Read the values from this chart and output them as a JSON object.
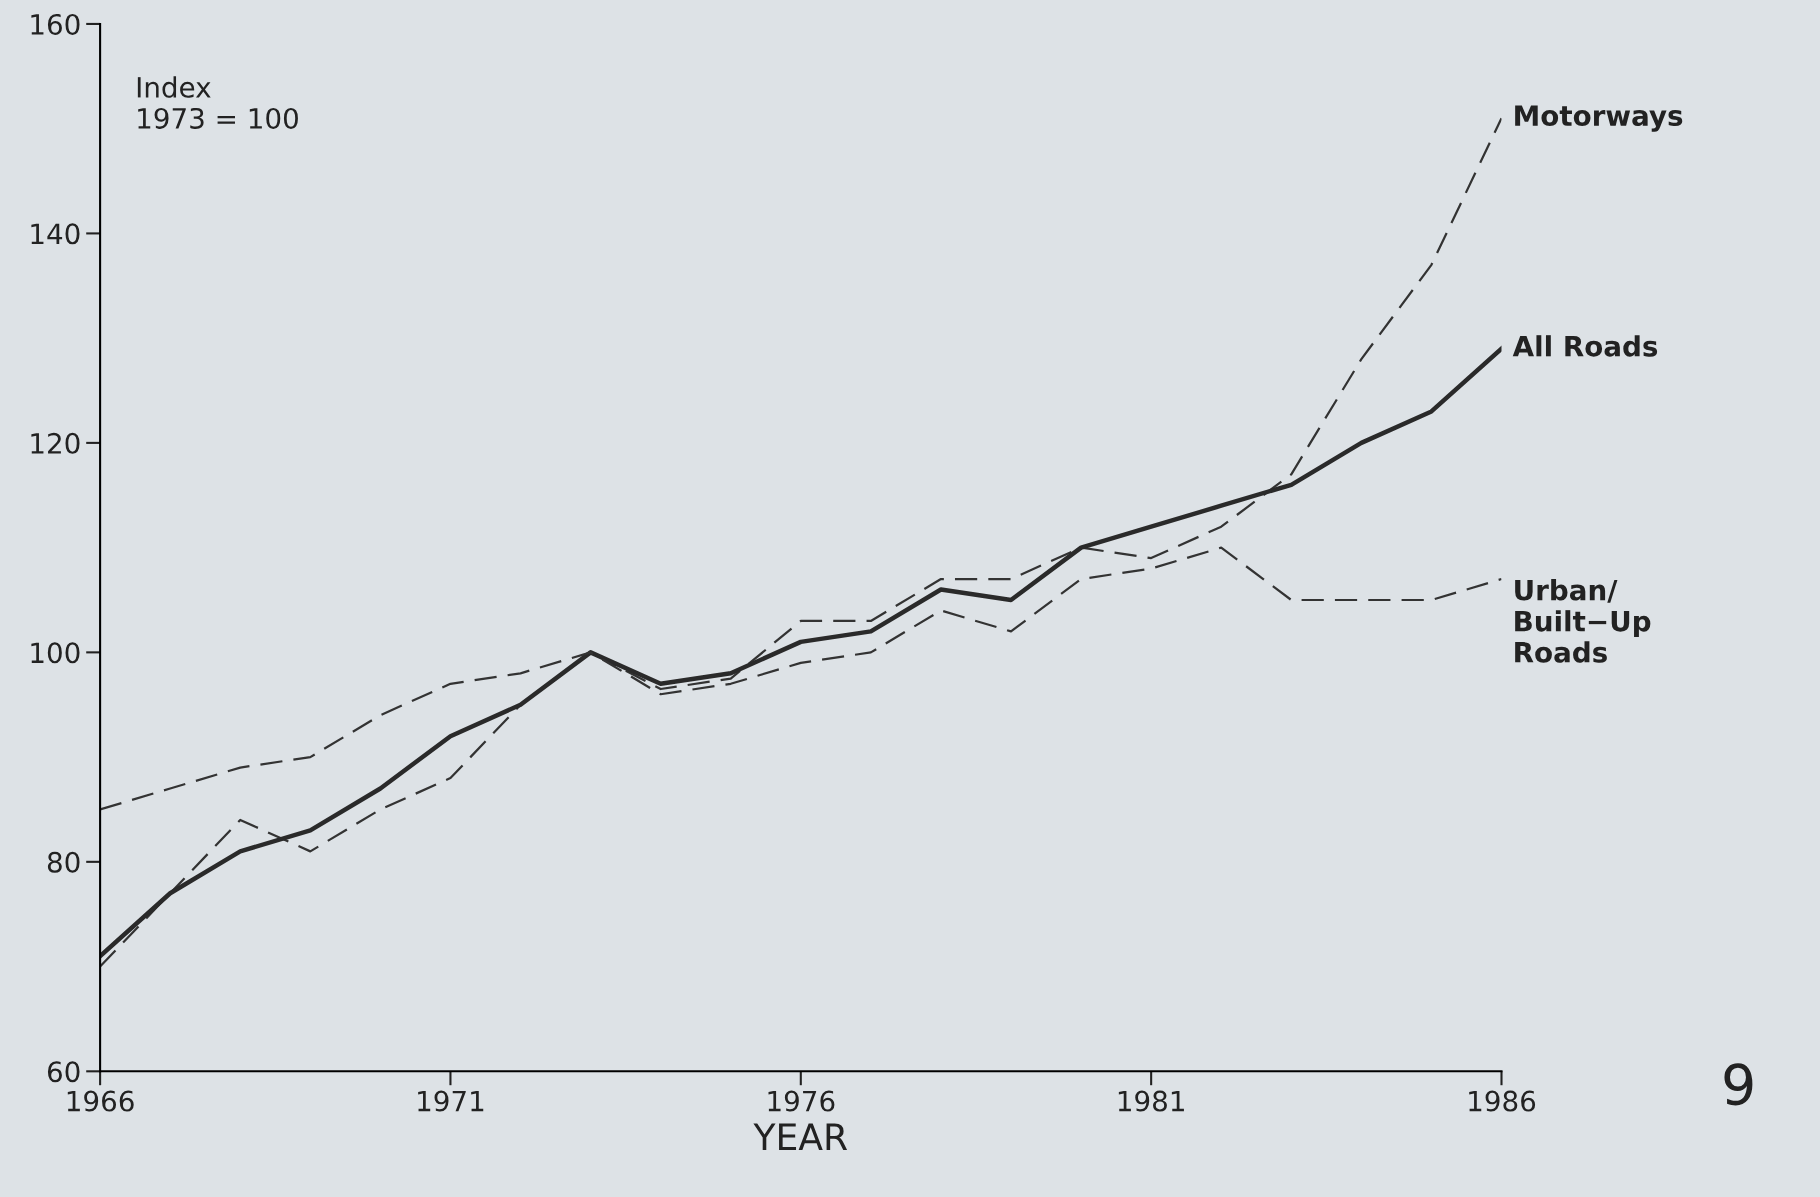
{
  "chart_data": {
    "type": "line",
    "xlabel": "YEAR",
    "x": [
      1966,
      1967,
      1968,
      1969,
      1970,
      1971,
      1972,
      1973,
      1974,
      1975,
      1976,
      1977,
      1978,
      1979,
      1980,
      1981,
      1982,
      1983,
      1984,
      1985,
      1986
    ],
    "series": [
      {
        "name": "Motorways",
        "color": "#333333",
        "line_style": "dashed",
        "values": [
          70,
          77,
          84,
          81,
          85,
          88,
          95,
          100,
          96.5,
          97.5,
          103,
          103,
          107,
          107,
          110,
          109,
          112,
          117,
          128,
          137,
          151
        ]
      },
      {
        "name": "All Roads",
        "color": "#2a2a2a",
        "line_style": "solid",
        "values": [
          71,
          77,
          81,
          83,
          87,
          92,
          95,
          100,
          97,
          98,
          101,
          102,
          106,
          105,
          110,
          112,
          114,
          116,
          120,
          123,
          129
        ]
      },
      {
        "name": "Urban/\nBuilt−Up\nRoads",
        "color": "#333333",
        "line_style": "dashed",
        "values": [
          85,
          87,
          89,
          90,
          94,
          97,
          98,
          100,
          96,
          97,
          99,
          100,
          104,
          102,
          107,
          108,
          110,
          105,
          105,
          105,
          107
        ]
      }
    ],
    "xlim": [
      1966,
      1986
    ],
    "ylim": [
      60,
      160
    ],
    "xticks": [
      1966,
      1971,
      1976,
      1981,
      1986
    ],
    "yticks": [
      60,
      80,
      100,
      120,
      140,
      160
    ],
    "grid": false,
    "legend": false,
    "marker": "none",
    "annotations": [
      "Index\n1973 = 100",
      "9"
    ]
  }
}
